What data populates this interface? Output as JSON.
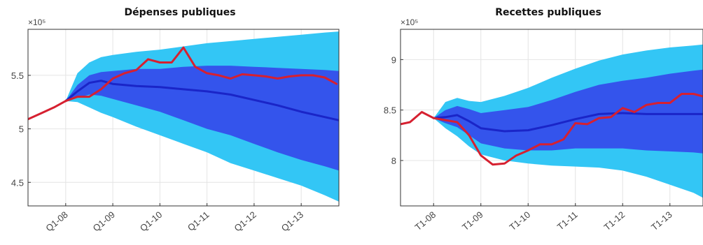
{
  "colors": {
    "outer_band": "#33c6f5",
    "inner_band": "#3454ec",
    "median": "#1a25c8",
    "actual": "#d62030"
  },
  "chart_data": [
    {
      "type": "area",
      "title": "Dépenses publiques",
      "multiplier": "×10⁵",
      "x_tick_labels": [
        "Q1-08",
        "Q1-09",
        "Q1-10",
        "Q1-11",
        "Q1-12",
        "Q1-13"
      ],
      "x_tick_positions": [
        2008,
        2009,
        2010,
        2011,
        2012,
        2013
      ],
      "xlim": [
        2007.2,
        2013.8
      ],
      "y_ticks": [
        4.5,
        5,
        5.5
      ],
      "y_tick_labels": [
        "4.5",
        "5",
        "5.5"
      ],
      "ylim": [
        4.28,
        5.93
      ],
      "grid": true,
      "series": [
        {
          "x": [
            2007.2,
            2007.5,
            2007.75,
            2008.0
          ],
          "values": [
            5.09,
            5.15,
            5.2,
            5.26
          ]
        },
        {
          "x": [
            2008.0,
            2008.25,
            2008.5,
            2008.75,
            2009.0,
            2009.25,
            2009.5,
            2009.75,
            2010.0,
            2010.25,
            2010.5,
            2010.75,
            2011.0,
            2011.25,
            2011.5,
            2011.75,
            2012.0,
            2012.25,
            2012.5,
            2012.75,
            2013.0,
            2013.25,
            2013.5,
            2013.75
          ],
          "values": [
            5.26,
            5.3,
            5.3,
            5.37,
            5.47,
            5.52,
            5.55,
            5.65,
            5.62,
            5.62,
            5.76,
            5.58,
            5.52,
            5.5,
            5.47,
            5.51,
            5.5,
            5.49,
            5.47,
            5.49,
            5.5,
            5.5,
            5.48,
            5.42
          ]
        },
        {
          "x": [
            2008.0,
            2008.25,
            2008.5,
            2008.75,
            2009.0,
            2009.5,
            2010.0,
            2010.5,
            2011.0,
            2011.5,
            2012.0,
            2012.5,
            2013.0,
            2013.5,
            2013.8
          ],
          "values": [
            5.26,
            5.35,
            5.43,
            5.45,
            5.42,
            5.4,
            5.39,
            5.37,
            5.35,
            5.32,
            5.27,
            5.22,
            5.16,
            5.11,
            5.08
          ]
        },
        {
          "x": [
            2008.0,
            2008.25,
            2008.5,
            2008.75,
            2009.0,
            2009.5,
            2010.0,
            2010.5,
            2011.0,
            2011.5,
            2012.0,
            2012.5,
            2013.0,
            2013.5,
            2013.8
          ],
          "values": [
            5.26,
            5.29,
            5.32,
            5.31,
            5.28,
            5.22,
            5.16,
            5.08,
            5.0,
            4.94,
            4.86,
            4.78,
            4.71,
            4.65,
            4.61
          ]
        },
        {
          "x": [
            2008.0,
            2008.25,
            2008.5,
            2008.75,
            2009.0,
            2009.5,
            2010.0,
            2010.5,
            2011.0,
            2011.5,
            2012.0,
            2012.5,
            2013.0,
            2013.5,
            2013.8
          ],
          "values": [
            5.26,
            5.41,
            5.5,
            5.53,
            5.54,
            5.56,
            5.56,
            5.58,
            5.59,
            5.59,
            5.58,
            5.57,
            5.56,
            5.55,
            5.54
          ]
        },
        {
          "x": [
            2008.0,
            2008.25,
            2008.5,
            2008.75,
            2009.0,
            2009.5,
            2010.0,
            2010.5,
            2011.0,
            2011.5,
            2012.0,
            2012.5,
            2013.0,
            2013.5,
            2013.8
          ],
          "values": [
            5.26,
            5.25,
            5.2,
            5.15,
            5.11,
            5.02,
            4.94,
            4.86,
            4.78,
            4.68,
            4.61,
            4.54,
            4.47,
            4.38,
            4.32
          ]
        },
        {
          "x": [
            2008.0,
            2008.25,
            2008.5,
            2008.75,
            2009.0,
            2009.5,
            2010.0,
            2010.5,
            2011.0,
            2011.5,
            2012.0,
            2012.5,
            2013.0,
            2013.5,
            2013.8
          ],
          "values": [
            5.26,
            5.52,
            5.62,
            5.67,
            5.69,
            5.72,
            5.74,
            5.77,
            5.8,
            5.82,
            5.84,
            5.86,
            5.88,
            5.9,
            5.91
          ]
        }
      ]
    },
    {
      "type": "area",
      "title": "Recettes publiques",
      "multiplier": "×10⁵",
      "x_tick_labels": [
        "T1-08",
        "T1-09",
        "T1-10",
        "T1-11",
        "T1-12",
        "T1-13"
      ],
      "x_tick_positions": [
        2008,
        2009,
        2010,
        2011,
        2012,
        2013
      ],
      "xlim": [
        2007.3,
        2013.7
      ],
      "y_ticks": [
        8,
        8.5,
        9
      ],
      "y_tick_labels": [
        "8",
        "8.5",
        "9"
      ],
      "ylim": [
        7.55,
        9.3
      ],
      "grid": true,
      "series": [
        {
          "x": [
            2007.3,
            2007.5,
            2007.75,
            2008.0
          ],
          "values": [
            8.36,
            8.38,
            8.48,
            8.42
          ]
        },
        {
          "x": [
            2008.0,
            2008.25,
            2008.5,
            2008.75,
            2009.0,
            2009.25,
            2009.5,
            2009.75,
            2010.0,
            2010.25,
            2010.5,
            2010.75,
            2011.0,
            2011.25,
            2011.5,
            2011.75,
            2012.0,
            2012.25,
            2012.5,
            2012.75,
            2013.0,
            2013.25,
            2013.5,
            2013.75
          ],
          "values": [
            8.42,
            8.4,
            8.38,
            8.25,
            8.05,
            7.96,
            7.97,
            8.05,
            8.1,
            8.16,
            8.16,
            8.21,
            8.37,
            8.36,
            8.42,
            8.43,
            8.52,
            8.48,
            8.55,
            8.57,
            8.57,
            8.66,
            8.66,
            8.63
          ]
        },
        {
          "x": [
            2008.0,
            2008.25,
            2008.5,
            2008.75,
            2009.0,
            2009.5,
            2010.0,
            2010.5,
            2011.0,
            2011.5,
            2012.0,
            2012.5,
            2013.0,
            2013.5,
            2013.7
          ],
          "values": [
            8.42,
            8.43,
            8.45,
            8.39,
            8.32,
            8.29,
            8.3,
            8.35,
            8.41,
            8.46,
            8.47,
            8.46,
            8.46,
            8.46,
            8.46
          ]
        },
        {
          "x": [
            2008.0,
            2008.25,
            2008.5,
            2008.75,
            2009.0,
            2009.5,
            2010.0,
            2010.5,
            2011.0,
            2011.5,
            2012.0,
            2012.5,
            2013.0,
            2013.5,
            2013.7
          ],
          "values": [
            8.42,
            8.37,
            8.33,
            8.25,
            8.17,
            8.12,
            8.1,
            8.1,
            8.12,
            8.12,
            8.12,
            8.1,
            8.09,
            8.08,
            8.07
          ]
        },
        {
          "x": [
            2008.0,
            2008.25,
            2008.5,
            2008.75,
            2009.0,
            2009.5,
            2010.0,
            2010.5,
            2011.0,
            2011.5,
            2012.0,
            2012.5,
            2013.0,
            2013.5,
            2013.7
          ],
          "values": [
            8.42,
            8.5,
            8.54,
            8.51,
            8.47,
            8.5,
            8.53,
            8.6,
            8.68,
            8.75,
            8.79,
            8.82,
            8.86,
            8.89,
            8.9
          ]
        },
        {
          "x": [
            2008.0,
            2008.25,
            2008.5,
            2008.75,
            2009.0,
            2009.5,
            2010.0,
            2010.5,
            2011.0,
            2011.5,
            2012.0,
            2012.5,
            2013.0,
            2013.5,
            2013.7
          ],
          "values": [
            8.42,
            8.32,
            8.24,
            8.14,
            8.06,
            8.0,
            7.97,
            7.95,
            7.94,
            7.93,
            7.9,
            7.84,
            7.76,
            7.68,
            7.63
          ]
        },
        {
          "x": [
            2008.0,
            2008.25,
            2008.5,
            2008.75,
            2009.0,
            2009.5,
            2010.0,
            2010.5,
            2011.0,
            2011.5,
            2012.0,
            2012.5,
            2013.0,
            2013.5,
            2013.7
          ],
          "values": [
            8.42,
            8.58,
            8.62,
            8.59,
            8.58,
            8.64,
            8.72,
            8.82,
            8.91,
            8.99,
            9.05,
            9.09,
            9.12,
            9.14,
            9.15
          ]
        }
      ]
    }
  ]
}
